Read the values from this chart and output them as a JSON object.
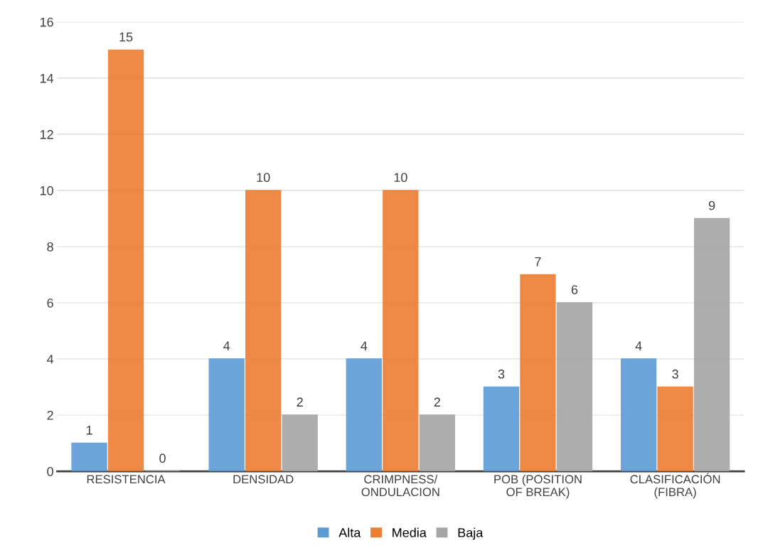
{
  "chart_data": {
    "type": "bar",
    "categories": [
      "RESISTENCIA",
      "DENSIDAD",
      "CRIMPNESS/\nONDULACION",
      "POB (POSITION\nOF BREAK)",
      "CLASIFICACIÓN\n(FIBRA)"
    ],
    "series": [
      {
        "name": "Alta",
        "color": "#5b9bd5",
        "values": [
          1,
          4,
          4,
          3,
          4
        ]
      },
      {
        "name": "Media",
        "color": "#ed7d31",
        "values": [
          15,
          10,
          10,
          7,
          3
        ]
      },
      {
        "name": "Baja",
        "color": "#a5a5a5",
        "values": [
          0,
          2,
          2,
          6,
          9
        ]
      }
    ],
    "ylim": [
      0,
      16
    ],
    "yticks": [
      0,
      2,
      4,
      6,
      8,
      10,
      12,
      14,
      16
    ],
    "grid": "y",
    "legend": "bottom",
    "data_labels": true
  }
}
